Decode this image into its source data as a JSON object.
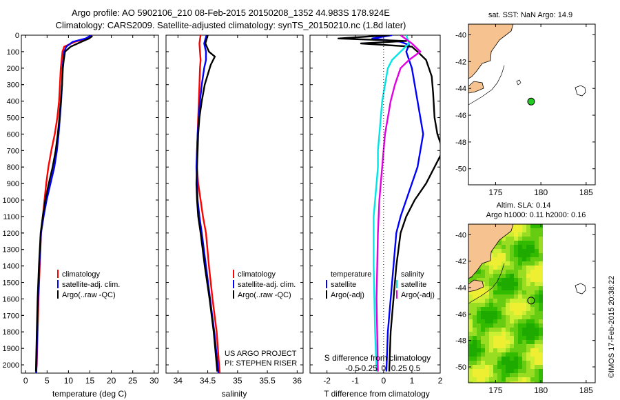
{
  "header": {
    "line1": "Argo profile: AO 5902106_210 08-Feb-2015 20150208_1352 44.983S 178.924E",
    "line2": "Climatology: CARS2009. Satellite-adjusted climatology: synTS_20150210.nc (1.8d later)"
  },
  "side_label": "©IMOS 17-Feb-2015 20:38:22",
  "chart_data": [
    {
      "type": "line",
      "id": "temperature",
      "xlabel": "temperature (deg C)",
      "ylabel": "",
      "xlim": [
        -1,
        31
      ],
      "ylim": [
        2050,
        0
      ],
      "xticks": [
        "0",
        "5",
        "10",
        "15",
        "20",
        "25",
        "30"
      ],
      "yticks": [
        "0",
        "100",
        "200",
        "300",
        "400",
        "500",
        "600",
        "700",
        "800",
        "900",
        "1000",
        "1100",
        "1200",
        "1300",
        "1400",
        "1500",
        "1600",
        "1700",
        "1800",
        "1900",
        "2000"
      ],
      "legend": [
        "climatology",
        "satellite-adj. clim.",
        "Argo(..raw -QC)"
      ],
      "series": [
        {
          "name": "climatology",
          "color": "#ff0000",
          "x": [
            15.5,
            14.5,
            11.5,
            9.0,
            8.6,
            8.4,
            8.2,
            8.0,
            7.8,
            7.4,
            6.8,
            6.0,
            5.3,
            4.8,
            4.4,
            4.0,
            3.6,
            3.3,
            3.0,
            2.8,
            2.6,
            2.4
          ],
          "y": [
            0,
            20,
            40,
            70,
            100,
            150,
            200,
            300,
            400,
            500,
            600,
            700,
            800,
            900,
            1000,
            1100,
            1200,
            1400,
            1600,
            1800,
            2000,
            2050
          ]
        },
        {
          "name": "satellite-adj. clim.",
          "color": "#0000ff",
          "x": [
            15.3,
            14.0,
            11.0,
            9.5,
            9.0,
            8.8,
            8.6,
            8.5,
            8.3,
            8.0,
            7.7,
            7.3,
            6.7,
            5.8,
            4.9,
            4.2,
            3.6,
            3.2,
            2.9,
            2.7,
            2.5
          ],
          "y": [
            0,
            20,
            40,
            70,
            100,
            150,
            200,
            300,
            400,
            500,
            600,
            700,
            800,
            900,
            1000,
            1100,
            1200,
            1400,
            1600,
            1800,
            2050
          ]
        },
        {
          "name": "Argo(..raw -QC)",
          "color": "#000000",
          "x": [
            15.6,
            14.8,
            13.0,
            10.5,
            9.2,
            8.9,
            8.7,
            8.5,
            8.2,
            7.9,
            7.5,
            7.0,
            6.3,
            5.4,
            4.6,
            4.0,
            3.5,
            3.1,
            2.8,
            2.6,
            2.4
          ],
          "y": [
            5,
            20,
            40,
            70,
            100,
            150,
            200,
            300,
            400,
            500,
            600,
            700,
            800,
            900,
            1000,
            1100,
            1200,
            1400,
            1600,
            1800,
            2040
          ]
        }
      ]
    },
    {
      "type": "line",
      "id": "salinity",
      "xlabel": "salinity",
      "ylabel": "",
      "xlim": [
        33.8,
        36.1
      ],
      "ylim": [
        2050,
        0
      ],
      "xticks": [
        "34",
        "34.5",
        "35",
        "35.5",
        "36"
      ],
      "legend": [
        "climatology",
        "satellite-adj. clim.",
        "Argo(..raw -QC)"
      ],
      "annotation": [
        "US ARGO PROJECT",
        "PI: STEPHEN RISER"
      ],
      "series": [
        {
          "name": "climatology",
          "color": "#ff0000",
          "x": [
            34.38,
            34.36,
            34.37,
            34.38,
            34.37,
            34.36,
            34.35,
            34.34,
            34.33,
            34.32,
            34.32,
            34.34,
            34.38,
            34.42,
            34.47,
            34.52,
            34.58,
            34.65,
            34.7
          ],
          "y": [
            0,
            50,
            100,
            150,
            200,
            300,
            400,
            500,
            600,
            700,
            800,
            900,
            1000,
            1100,
            1200,
            1400,
            1600,
            1800,
            2050
          ]
        },
        {
          "name": "satellite-adj. clim.",
          "color": "#0000ff",
          "x": [
            34.48,
            34.44,
            34.47,
            34.47,
            34.44,
            34.4,
            34.37,
            34.35,
            34.33,
            34.32,
            34.31,
            34.32,
            34.33,
            34.36,
            34.4,
            34.47,
            34.54,
            34.61,
            34.68
          ],
          "y": [
            0,
            50,
            100,
            150,
            200,
            300,
            400,
            500,
            600,
            700,
            800,
            900,
            1000,
            1100,
            1200,
            1400,
            1600,
            1800,
            2050
          ]
        },
        {
          "name": "Argo(..raw -QC)",
          "color": "#000000",
          "x": [
            34.5,
            34.46,
            34.52,
            34.62,
            34.55,
            34.45,
            34.4,
            34.36,
            34.34,
            34.33,
            34.32,
            34.31,
            34.32,
            34.34,
            34.38,
            34.45,
            34.53,
            34.6,
            34.66
          ],
          "y": [
            0,
            50,
            100,
            130,
            180,
            300,
            400,
            500,
            600,
            700,
            800,
            900,
            1000,
            1100,
            1200,
            1400,
            1600,
            1800,
            2040
          ]
        }
      ]
    },
    {
      "type": "line",
      "id": "difference",
      "xlabel": "T difference from climatology",
      "xlabel_top": "S difference from climatology",
      "xlim": [
        -2.6,
        2.0
      ],
      "ylim": [
        2050,
        0
      ],
      "xticks": [
        "-2",
        "-1",
        "0",
        "1",
        "2"
      ],
      "xticks_top": [
        "-0.5",
        "-0.25",
        "0",
        "0.25",
        "0.5"
      ],
      "legend_headers": [
        "temperature",
        "salinity"
      ],
      "legend": [
        "satellite",
        "Argo(-adj)",
        "satellite",
        "Argo(-adj)"
      ],
      "series": [
        {
          "name": "satellite",
          "group": "temperature",
          "color": "#0000ff",
          "x": [
            0.3,
            -0.4,
            0.6,
            0.9,
            0.8,
            0.9,
            1.0,
            1.1,
            1.2,
            1.3,
            1.4,
            1.3,
            1.2,
            1.0,
            0.8,
            0.6,
            0.45,
            0.35,
            0.25,
            0.15,
            0.1
          ],
          "y": [
            0,
            20,
            40,
            60,
            100,
            150,
            200,
            300,
            400,
            500,
            600,
            700,
            800,
            900,
            1000,
            1100,
            1200,
            1400,
            1600,
            1800,
            2040
          ]
        },
        {
          "name": "Argo(-adj)",
          "group": "temperature",
          "color": "#000000",
          "x": [
            0.2,
            -1.6,
            0.8,
            -0.8,
            1.0,
            1.2,
            1.5,
            1.7,
            1.75,
            1.8,
            1.9,
            2.1,
            1.8,
            1.5,
            1.1,
            0.8,
            0.6,
            0.45,
            0.35,
            0.25,
            0.2
          ],
          "y": [
            0,
            20,
            35,
            50,
            70,
            100,
            150,
            250,
            350,
            500,
            600,
            700,
            800,
            900,
            1000,
            1100,
            1200,
            1400,
            1600,
            1800,
            2040
          ]
        },
        {
          "name": "satellite",
          "group": "salinity",
          "color": "#00e5e5",
          "x": [
            0.8,
            0.9,
            0.6,
            0.3,
            0.15,
            0.05,
            -0.05,
            -0.1,
            -0.15,
            -0.2,
            -0.2,
            -0.25,
            -0.3,
            -0.35,
            -0.35,
            -0.3,
            -0.25
          ],
          "y": [
            0,
            50,
            100,
            150,
            200,
            300,
            400,
            500,
            600,
            700,
            800,
            900,
            1000,
            1100,
            1400,
            1800,
            2040
          ]
        },
        {
          "name": "Argo(-adj)",
          "group": "salinity",
          "color": "#e000e0",
          "x": [
            0.6,
            1.0,
            1.3,
            0.9,
            0.6,
            0.4,
            0.25,
            0.15,
            0.05,
            0.0,
            -0.05,
            -0.1,
            -0.15,
            -0.2,
            -0.25,
            -0.2
          ],
          "y": [
            0,
            50,
            100,
            150,
            200,
            300,
            400,
            500,
            600,
            700,
            800,
            900,
            1000,
            1200,
            1600,
            2040
          ]
        }
      ]
    },
    {
      "type": "scatter",
      "id": "sst-map",
      "title": "sat. SST: NaN Argo: 14.9",
      "xlim": [
        172,
        186
      ],
      "ylim": [
        -51.2,
        -39.2
      ],
      "xticks": [
        "175",
        "180",
        "185"
      ],
      "yticks": [
        "-40",
        "-42",
        "-44",
        "-46",
        "-48",
        "-50"
      ],
      "profile_position": {
        "x": 178.924,
        "y": -44.983
      },
      "marker_color": "#22cc22"
    },
    {
      "type": "heatmap",
      "id": "sla-map",
      "title": "Altim. SLA: 0.14",
      "subtitle": "Argo h1000: 0.11 h2000: 0.16",
      "xlim": [
        172,
        186
      ],
      "ylim": [
        -51.2,
        -39.2
      ],
      "xticks": [
        "175",
        "180",
        "185"
      ],
      "yticks": [
        "-40",
        "-42",
        "-44",
        "-46",
        "-48",
        "-50"
      ],
      "profile_position": {
        "x": 178.924,
        "y": -44.983
      },
      "land_color": "#f5c290",
      "colormap": [
        "#1faa00",
        "#33bb00",
        "#66cc11",
        "#99dd22",
        "#ccee33",
        "#eeee33"
      ]
    }
  ]
}
